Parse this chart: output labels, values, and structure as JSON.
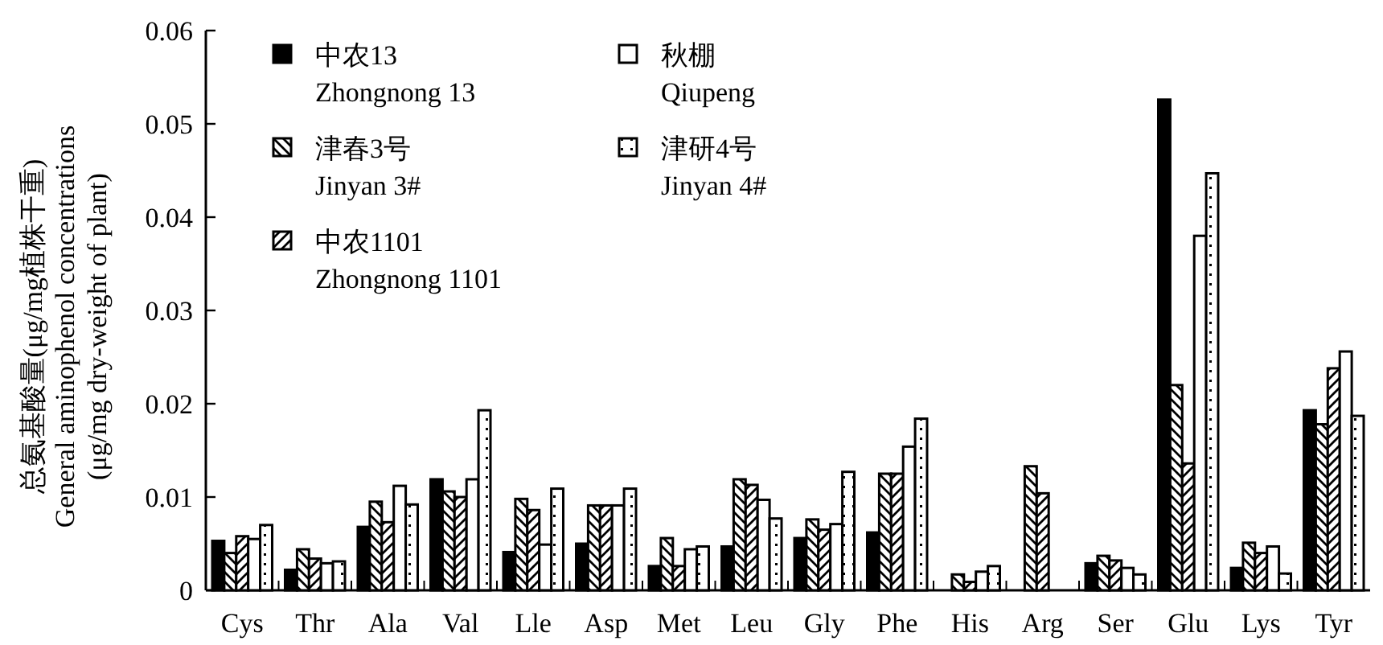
{
  "chart_data": {
    "type": "bar",
    "ylabel": "总氨基酸量(μg/mg植株干重)\nGeneral aminophenol concentrations\n(μg/mg dry-weight of plant)",
    "categories": [
      "Cys",
      "Thr",
      "Ala",
      "Val",
      "Lle",
      "Asp",
      "Met",
      "Leu",
      "Gly",
      "Phe",
      "His",
      "Arg",
      "Ser",
      "Glu",
      "Lys",
      "Tyr"
    ],
    "series": [
      {
        "name": "中农13\nZhongnong 13",
        "color": "#000000",
        "values": [
          0.0053,
          0.0022,
          0.0068,
          0.0119,
          0.0041,
          0.005,
          0.0026,
          0.0047,
          0.0056,
          0.0062,
          null,
          null,
          0.0029,
          0.0526,
          0.0024,
          0.0193
        ]
      },
      {
        "name": "津春3号\nJinyan 3#",
        "color": "#000000",
        "values": [
          0.004,
          0.0044,
          0.0095,
          0.0106,
          0.0098,
          0.0091,
          0.0056,
          0.0119,
          0.0076,
          0.0125,
          0.0017,
          0.0133,
          0.0037,
          0.022,
          0.0051,
          0.0178
        ]
      },
      {
        "name": "中农1101\nZhongnong 1101",
        "color": "#000000",
        "values": [
          0.0058,
          0.0034,
          0.0073,
          0.01,
          0.0086,
          0.0091,
          0.0026,
          0.0113,
          0.0065,
          0.0125,
          0.0009,
          0.0104,
          0.0032,
          0.0136,
          0.004,
          0.0238
        ]
      },
      {
        "name": "秋棚\nQiupeng",
        "color": "#ffffff",
        "values": [
          0.0055,
          0.0029,
          0.0112,
          0.0119,
          0.0049,
          0.0091,
          0.0044,
          0.0097,
          0.0071,
          0.0154,
          0.002,
          null,
          0.0024,
          0.038,
          0.0047,
          0.0256
        ]
      },
      {
        "name": "津研4号\nJinyan 4#",
        "color": "#000000",
        "values": [
          0.007,
          0.0031,
          0.0092,
          0.0193,
          0.0109,
          0.0109,
          0.0047,
          0.0077,
          0.0127,
          0.0184,
          0.0026,
          null,
          0.0017,
          0.0447,
          0.0018,
          0.0187
        ]
      }
    ],
    "ylim": [
      0,
      0.06
    ],
    "yticks": [
      0,
      0.01,
      0.02,
      0.03,
      0.04,
      0.05,
      0.06
    ],
    "legend": "top left",
    "grid": false
  }
}
